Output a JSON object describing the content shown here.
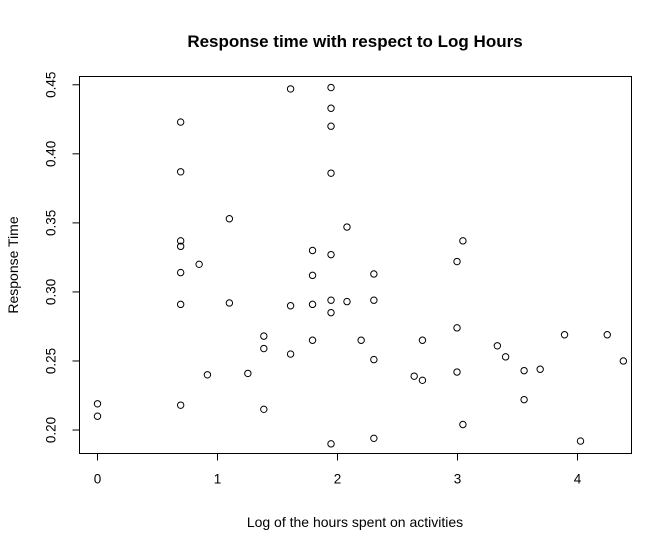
{
  "chart_data": {
    "type": "scatter",
    "title": "Response time with respect to Log Hours",
    "xlabel": "Log of the hours spent on activities",
    "ylabel": "Response Time",
    "xlim": [
      -0.15,
      4.45
    ],
    "ylim": [
      0.183,
      0.456
    ],
    "x_ticks": [
      0,
      1,
      2,
      3,
      4
    ],
    "x_tick_labels": [
      "0",
      "1",
      "2",
      "3",
      "4"
    ],
    "y_ticks": [
      0.2,
      0.25,
      0.3,
      0.35,
      0.4,
      0.45
    ],
    "y_tick_labels": [
      "0.20",
      "0.25",
      "0.30",
      "0.35",
      "0.40",
      "0.45"
    ],
    "grid": false,
    "legend": "none",
    "marker": "open-circle",
    "points": [
      {
        "x": 0.0,
        "y": 0.219
      },
      {
        "x": 0.0,
        "y": 0.21
      },
      {
        "x": 0.693,
        "y": 0.423
      },
      {
        "x": 0.693,
        "y": 0.387
      },
      {
        "x": 0.693,
        "y": 0.337
      },
      {
        "x": 0.693,
        "y": 0.333
      },
      {
        "x": 0.693,
        "y": 0.314
      },
      {
        "x": 0.693,
        "y": 0.291
      },
      {
        "x": 0.693,
        "y": 0.218
      },
      {
        "x": 0.847,
        "y": 0.32
      },
      {
        "x": 0.916,
        "y": 0.24
      },
      {
        "x": 1.099,
        "y": 0.353
      },
      {
        "x": 1.099,
        "y": 0.292
      },
      {
        "x": 1.253,
        "y": 0.241
      },
      {
        "x": 1.386,
        "y": 0.268
      },
      {
        "x": 1.386,
        "y": 0.259
      },
      {
        "x": 1.386,
        "y": 0.215
      },
      {
        "x": 1.609,
        "y": 0.447
      },
      {
        "x": 1.609,
        "y": 0.29
      },
      {
        "x": 1.609,
        "y": 0.255
      },
      {
        "x": 1.792,
        "y": 0.33
      },
      {
        "x": 1.792,
        "y": 0.312
      },
      {
        "x": 1.792,
        "y": 0.291
      },
      {
        "x": 1.792,
        "y": 0.265
      },
      {
        "x": 1.946,
        "y": 0.448
      },
      {
        "x": 1.946,
        "y": 0.433
      },
      {
        "x": 1.946,
        "y": 0.42
      },
      {
        "x": 1.946,
        "y": 0.386
      },
      {
        "x": 1.946,
        "y": 0.327
      },
      {
        "x": 1.946,
        "y": 0.294
      },
      {
        "x": 1.946,
        "y": 0.285
      },
      {
        "x": 1.946,
        "y": 0.19
      },
      {
        "x": 2.079,
        "y": 0.347
      },
      {
        "x": 2.079,
        "y": 0.293
      },
      {
        "x": 2.197,
        "y": 0.265
      },
      {
        "x": 2.303,
        "y": 0.313
      },
      {
        "x": 2.303,
        "y": 0.294
      },
      {
        "x": 2.303,
        "y": 0.251
      },
      {
        "x": 2.303,
        "y": 0.194
      },
      {
        "x": 2.639,
        "y": 0.239
      },
      {
        "x": 2.708,
        "y": 0.265
      },
      {
        "x": 2.708,
        "y": 0.236
      },
      {
        "x": 2.996,
        "y": 0.322
      },
      {
        "x": 2.996,
        "y": 0.274
      },
      {
        "x": 2.996,
        "y": 0.242
      },
      {
        "x": 3.045,
        "y": 0.337
      },
      {
        "x": 3.045,
        "y": 0.204
      },
      {
        "x": 3.332,
        "y": 0.261
      },
      {
        "x": 3.401,
        "y": 0.253
      },
      {
        "x": 3.555,
        "y": 0.243
      },
      {
        "x": 3.555,
        "y": 0.222
      },
      {
        "x": 3.689,
        "y": 0.244
      },
      {
        "x": 3.892,
        "y": 0.269
      },
      {
        "x": 4.025,
        "y": 0.192
      },
      {
        "x": 4.248,
        "y": 0.269
      },
      {
        "x": 4.382,
        "y": 0.25
      }
    ]
  }
}
